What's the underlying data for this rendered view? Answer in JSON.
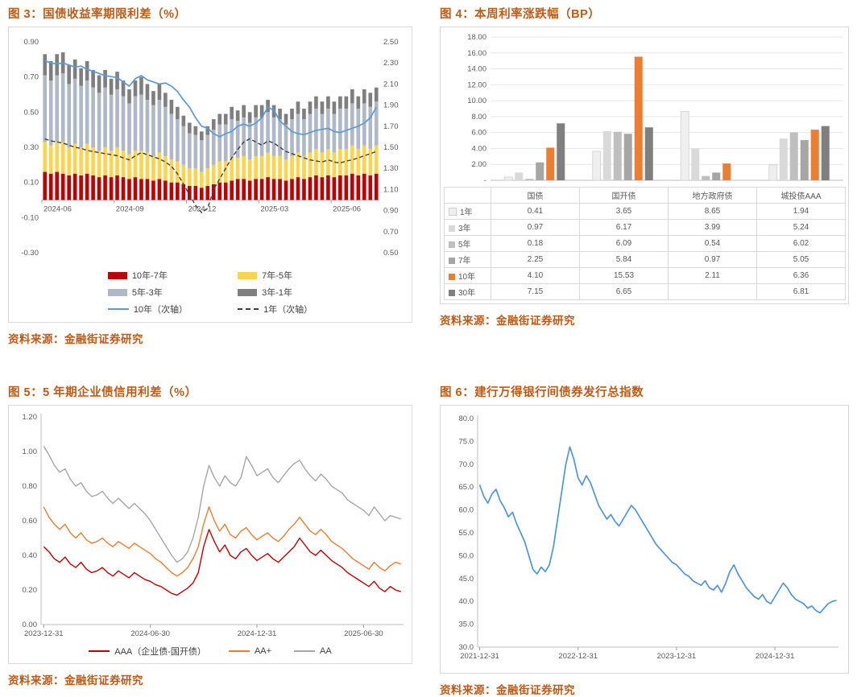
{
  "page": {
    "background": "#FFFFFF",
    "accent_color": "#BE5A14",
    "axis_text_color": "#595959"
  },
  "fig3": {
    "title": "图 3：国债收益率期限利差（%）",
    "source": "资料来源：金融街证券研究",
    "chart_data": {
      "type": "combo-stacked-bar-line",
      "x_ticks": [
        "2024-06",
        "2024-09",
        "2024-12",
        "2025-03",
        "2025-06"
      ],
      "x_tick_index": [
        0,
        12,
        24,
        36,
        48
      ],
      "left_axis": {
        "min": -0.3,
        "max": 0.9,
        "step": 0.2,
        "decimals": 2
      },
      "right_axis": {
        "min": 0.5,
        "max": 2.5,
        "step": 0.2,
        "decimals": 2
      },
      "bar_series": [
        {
          "name": "10年-7年",
          "color": "#C00000",
          "axis": "left",
          "values": [
            0.16,
            0.15,
            0.16,
            0.15,
            0.14,
            0.15,
            0.14,
            0.15,
            0.14,
            0.13,
            0.14,
            0.13,
            0.14,
            0.13,
            0.12,
            0.13,
            0.12,
            0.12,
            0.11,
            0.12,
            0.11,
            0.1,
            0.1,
            0.09,
            0.08,
            0.08,
            0.07,
            0.08,
            0.09,
            0.1,
            0.1,
            0.11,
            0.12,
            0.12,
            0.11,
            0.12,
            0.12,
            0.13,
            0.12,
            0.12,
            0.11,
            0.12,
            0.13,
            0.12,
            0.13,
            0.14,
            0.13,
            0.14,
            0.13,
            0.14,
            0.14,
            0.15,
            0.14,
            0.15,
            0.14,
            0.15
          ]
        },
        {
          "name": "7年-5年",
          "color": "#FFD34D",
          "axis": "left",
          "values": [
            0.17,
            0.16,
            0.17,
            0.18,
            0.16,
            0.17,
            0.16,
            0.17,
            0.16,
            0.15,
            0.16,
            0.15,
            0.16,
            0.15,
            0.14,
            0.15,
            0.16,
            0.15,
            0.14,
            0.15,
            0.14,
            0.13,
            0.12,
            0.11,
            0.1,
            0.1,
            0.09,
            0.1,
            0.11,
            0.12,
            0.12,
            0.13,
            0.12,
            0.13,
            0.12,
            0.13,
            0.13,
            0.14,
            0.13,
            0.13,
            0.12,
            0.13,
            0.14,
            0.13,
            0.14,
            0.15,
            0.14,
            0.15,
            0.14,
            0.15,
            0.15,
            0.16,
            0.15,
            0.16,
            0.15,
            0.16
          ]
        },
        {
          "name": "5年-3年",
          "color": "#AFB8C6",
          "axis": "left",
          "values": [
            0.38,
            0.37,
            0.38,
            0.39,
            0.36,
            0.37,
            0.35,
            0.36,
            0.34,
            0.33,
            0.34,
            0.32,
            0.33,
            0.31,
            0.29,
            0.31,
            0.32,
            0.3,
            0.29,
            0.3,
            0.28,
            0.26,
            0.24,
            0.22,
            0.2,
            0.19,
            0.18,
            0.19,
            0.2,
            0.21,
            0.21,
            0.22,
            0.21,
            0.22,
            0.21,
            0.22,
            0.22,
            0.23,
            0.22,
            0.21,
            0.2,
            0.21,
            0.22,
            0.21,
            0.22,
            0.23,
            0.22,
            0.23,
            0.22,
            0.23,
            0.23,
            0.24,
            0.23,
            0.24,
            0.24,
            0.25
          ]
        },
        {
          "name": "3年-1年",
          "color": "#7F7F7F",
          "axis": "left",
          "values": [
            0.12,
            0.11,
            0.12,
            0.12,
            0.11,
            0.11,
            0.1,
            0.11,
            0.1,
            0.1,
            0.1,
            0.09,
            0.1,
            0.09,
            0.08,
            0.09,
            0.1,
            0.09,
            0.08,
            0.09,
            0.08,
            0.08,
            0.07,
            0.06,
            0.06,
            0.05,
            0.05,
            0.05,
            0.06,
            0.06,
            0.06,
            0.07,
            0.06,
            0.07,
            0.06,
            0.07,
            0.07,
            0.07,
            0.07,
            0.06,
            0.06,
            0.06,
            0.07,
            0.06,
            0.07,
            0.07,
            0.07,
            0.07,
            0.07,
            0.07,
            0.07,
            0.08,
            0.07,
            0.08,
            0.08,
            0.08
          ]
        }
      ],
      "line_series": [
        {
          "name": "10年（次轴）",
          "color": "#5B9BD5",
          "style": "solid",
          "axis": "right",
          "values": [
            2.32,
            2.3,
            2.29,
            2.3,
            2.28,
            2.26,
            2.27,
            2.24,
            2.22,
            2.2,
            2.18,
            2.17,
            2.16,
            2.12,
            2.08,
            2.15,
            2.18,
            2.14,
            2.12,
            2.1,
            2.11,
            2.08,
            2.03,
            1.95,
            1.88,
            1.78,
            1.7,
            1.68,
            1.63,
            1.6,
            1.63,
            1.65,
            1.7,
            1.72,
            1.7,
            1.73,
            1.78,
            1.88,
            1.85,
            1.75,
            1.7,
            1.65,
            1.63,
            1.62,
            1.64,
            1.66,
            1.67,
            1.68,
            1.65,
            1.64,
            1.66,
            1.68,
            1.7,
            1.73,
            1.78,
            1.88
          ]
        },
        {
          "name": "1年（次轴）",
          "color": "#3F3F3F",
          "style": "dashed",
          "axis": "right",
          "values": [
            1.58,
            1.56,
            1.55,
            1.54,
            1.52,
            1.5,
            1.49,
            1.47,
            1.46,
            1.45,
            1.44,
            1.43,
            1.42,
            1.4,
            1.38,
            1.42,
            1.45,
            1.43,
            1.41,
            1.39,
            1.36,
            1.32,
            1.25,
            1.15,
            1.05,
            0.95,
            0.88,
            0.92,
            1.1,
            1.2,
            1.3,
            1.4,
            1.48,
            1.55,
            1.58,
            1.55,
            1.52,
            1.56,
            1.54,
            1.5,
            1.46,
            1.44,
            1.42,
            1.4,
            1.38,
            1.37,
            1.36,
            1.38,
            1.36,
            1.35,
            1.37,
            1.38,
            1.4,
            1.42,
            1.44,
            1.46
          ]
        }
      ]
    }
  },
  "fig4": {
    "title": "图 4：本周利率涨跌幅（BP）",
    "source": "资料来源：金融街证券研究",
    "chart_data": {
      "type": "bar",
      "categories": [
        "国债",
        "国开债",
        "地方政府债",
        "城投债AAA"
      ],
      "y_axis": {
        "min": 0,
        "max": 18,
        "step": 2,
        "decimals": 2,
        "zero_label": "-"
      },
      "series": [
        {
          "name": "1年",
          "color": "#EFEFEF",
          "stroke": "#CFCFCF",
          "values": [
            0.41,
            3.65,
            8.65,
            1.94
          ]
        },
        {
          "name": "3年",
          "color": "#D9D9D9",
          "values": [
            0.97,
            6.17,
            3.99,
            5.24
          ]
        },
        {
          "name": "5年",
          "color": "#BFBFBF",
          "values": [
            0.18,
            6.09,
            0.54,
            6.02
          ]
        },
        {
          "name": "7年",
          "color": "#A6A6A6",
          "values": [
            2.25,
            5.84,
            0.97,
            5.05
          ]
        },
        {
          "name": "10年",
          "color": "#ED7D31",
          "values": [
            4.1,
            15.53,
            2.11,
            6.36
          ]
        },
        {
          "name": "30年",
          "color": "#7F7F7F",
          "values": [
            7.15,
            6.65,
            null,
            6.81
          ]
        }
      ],
      "legend_position": "table-below"
    }
  },
  "fig5": {
    "title": "图 5：5 年期企业债信用利差（%）",
    "source": "资料来源：金融街证券研究",
    "chart_data": {
      "type": "line",
      "x_ticks": [
        "2023-12-31",
        "2024-06-30",
        "2024-12-31",
        "2025-06-30"
      ],
      "x_tick_index": [
        0,
        20,
        40,
        60
      ],
      "y_axis": {
        "min": 0.0,
        "max": 1.2,
        "step": 0.2,
        "decimals": 2
      },
      "series": [
        {
          "name": "AAA（企业债-国开债）",
          "color": "#C00000",
          "values": [
            0.45,
            0.42,
            0.38,
            0.36,
            0.39,
            0.35,
            0.33,
            0.36,
            0.32,
            0.3,
            0.31,
            0.33,
            0.3,
            0.28,
            0.31,
            0.29,
            0.27,
            0.3,
            0.28,
            0.26,
            0.25,
            0.23,
            0.22,
            0.2,
            0.18,
            0.17,
            0.19,
            0.21,
            0.24,
            0.3,
            0.45,
            0.55,
            0.48,
            0.42,
            0.46,
            0.4,
            0.38,
            0.42,
            0.44,
            0.4,
            0.37,
            0.39,
            0.41,
            0.38,
            0.36,
            0.39,
            0.42,
            0.45,
            0.5,
            0.46,
            0.42,
            0.4,
            0.43,
            0.4,
            0.37,
            0.35,
            0.33,
            0.3,
            0.28,
            0.26,
            0.24,
            0.22,
            0.25,
            0.21,
            0.19,
            0.22,
            0.2,
            0.19
          ]
        },
        {
          "name": "AA+",
          "color": "#ED7D31",
          "values": [
            0.68,
            0.62,
            0.58,
            0.55,
            0.58,
            0.53,
            0.5,
            0.53,
            0.49,
            0.47,
            0.48,
            0.5,
            0.47,
            0.45,
            0.48,
            0.46,
            0.44,
            0.47,
            0.45,
            0.43,
            0.41,
            0.38,
            0.36,
            0.33,
            0.3,
            0.28,
            0.3,
            0.33,
            0.38,
            0.45,
            0.58,
            0.68,
            0.6,
            0.54,
            0.58,
            0.52,
            0.5,
            0.54,
            0.56,
            0.52,
            0.49,
            0.51,
            0.53,
            0.5,
            0.48,
            0.51,
            0.55,
            0.58,
            0.62,
            0.58,
            0.54,
            0.52,
            0.55,
            0.52,
            0.48,
            0.46,
            0.44,
            0.41,
            0.38,
            0.36,
            0.34,
            0.32,
            0.36,
            0.33,
            0.31,
            0.34,
            0.36,
            0.35
          ]
        },
        {
          "name": "AA",
          "color": "#A6A6A6",
          "values": [
            1.03,
            0.98,
            0.92,
            0.88,
            0.9,
            0.84,
            0.8,
            0.82,
            0.77,
            0.74,
            0.75,
            0.77,
            0.73,
            0.7,
            0.73,
            0.7,
            0.67,
            0.7,
            0.67,
            0.64,
            0.6,
            0.55,
            0.5,
            0.45,
            0.4,
            0.36,
            0.38,
            0.42,
            0.5,
            0.62,
            0.8,
            0.92,
            0.85,
            0.8,
            0.86,
            0.82,
            0.8,
            0.85,
            0.97,
            0.92,
            0.86,
            0.88,
            0.9,
            0.85,
            0.82,
            0.86,
            0.9,
            0.93,
            0.95,
            0.9,
            0.86,
            0.83,
            0.87,
            0.84,
            0.8,
            0.78,
            0.76,
            0.72,
            0.7,
            0.68,
            0.66,
            0.63,
            0.68,
            0.64,
            0.6,
            0.63,
            0.62,
            0.61
          ]
        }
      ],
      "legend_position": "bottom"
    }
  },
  "fig6": {
    "title": "图 6：建行万得银行间债券发行总指数",
    "source": "资料来源：金融街证券研究",
    "chart_data": {
      "type": "line",
      "x_ticks": [
        "2021-12-31",
        "2022-12-31",
        "2023-12-31",
        "2024-12-31"
      ],
      "x_tick_index": [
        0,
        24,
        48,
        72
      ],
      "y_axis": {
        "min": 30.0,
        "max": 80.0,
        "step": 5.0,
        "decimals": 1
      },
      "series": [
        {
          "name": "建行万得银行间债券发行总指数",
          "color": "#4E95D9",
          "values": [
            65.5,
            63.0,
            61.5,
            63.5,
            64.5,
            62.0,
            60.5,
            58.5,
            59.5,
            57.0,
            55.0,
            53.0,
            50.0,
            47.0,
            46.0,
            47.5,
            46.5,
            48.0,
            52.0,
            58.0,
            64.0,
            70.0,
            73.8,
            71.0,
            67.0,
            65.5,
            67.5,
            66.0,
            63.5,
            61.0,
            59.5,
            58.0,
            59.0,
            57.5,
            56.5,
            58.0,
            59.5,
            61.0,
            60.0,
            58.5,
            57.0,
            55.5,
            54.0,
            52.5,
            51.5,
            50.5,
            49.5,
            48.5,
            48.0,
            47.0,
            46.0,
            45.5,
            44.5,
            44.0,
            43.5,
            44.5,
            43.0,
            42.5,
            43.5,
            42.0,
            44.0,
            46.5,
            48.0,
            46.0,
            44.5,
            43.0,
            42.0,
            41.0,
            40.5,
            41.5,
            40.0,
            39.5,
            41.0,
            42.5,
            44.0,
            43.0,
            41.5,
            40.5,
            40.0,
            39.5,
            38.5,
            39.0,
            38.0,
            37.5,
            38.5,
            39.5,
            40.0,
            40.2
          ]
        }
      ],
      "legend_position": "none"
    }
  }
}
